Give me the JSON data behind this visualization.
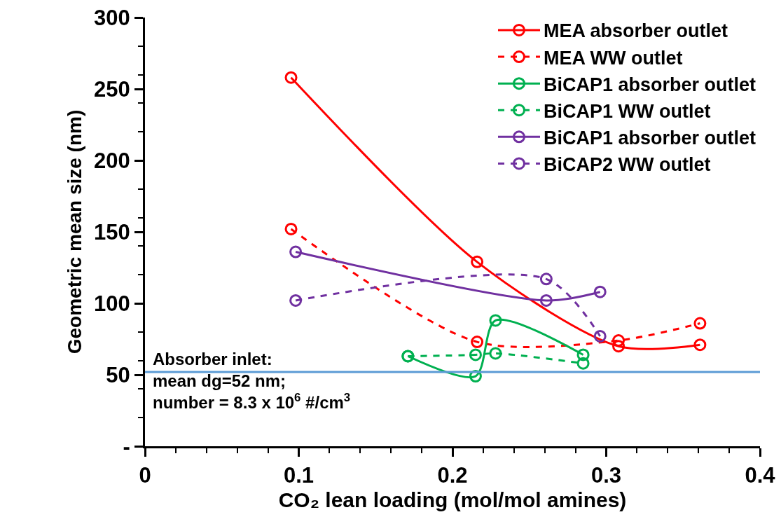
{
  "chart_data": {
    "type": "line",
    "xlabel": "CO₂ lean loading (mol/mol amines)",
    "ylabel": "Geometric mean size (nm)",
    "xlim": [
      0,
      0.4
    ],
    "xticks": [
      0,
      0.1,
      0.2,
      0.3,
      0.4
    ],
    "ylim": [
      0,
      300
    ],
    "yticks": [
      {
        "value": 0,
        "label": "-"
      },
      50,
      100,
      150,
      200,
      250,
      300
    ],
    "marker": "circle",
    "grid": false,
    "legend": "top right",
    "series": [
      {
        "name": "MEA absorber outlet",
        "color": "#ff0000",
        "line_style": "solid",
        "x": [
          0.095,
          0.216,
          0.308,
          0.361
        ],
        "values": [
          258,
          129,
          70,
          71
        ]
      },
      {
        "name": "MEA WW outlet",
        "color": "#ff0000",
        "line_style": "dashed",
        "x": [
          0.095,
          0.216,
          0.308,
          0.361
        ],
        "values": [
          152,
          73,
          74,
          86
        ]
      },
      {
        "name": "BiCAP1 absorber outlet",
        "color": "#00b050",
        "line_style": "solid",
        "x": [
          0.171,
          0.215,
          0.228,
          0.285
        ],
        "values": [
          63,
          49,
          88,
          64
        ]
      },
      {
        "name": "BiCAP1 WW outlet",
        "color": "#00b050",
        "line_style": "dashed",
        "x": [
          0.171,
          0.215,
          0.228,
          0.285
        ],
        "values": [
          63,
          64,
          65,
          58
        ]
      },
      {
        "name": "BiCAP1 absorber outlet",
        "color": "#7030a0",
        "line_style": "solid",
        "x": [
          0.098,
          0.261,
          0.296
        ],
        "values": [
          136,
          102,
          108
        ]
      },
      {
        "name": "BiCAP2 WW outlet",
        "color": "#7030a0",
        "line_style": "dashed",
        "x": [
          0.098,
          0.261,
          0.296
        ],
        "values": [
          102,
          117,
          77
        ]
      }
    ],
    "ref_lines": [
      {
        "axis": "y",
        "value": 52,
        "color": "#5b9bd5",
        "label": "Absorber inlet:\nmean dg=52 nm;\nnumber = 8.3 x 10$^{6}$ #/cm$^{3}$"
      }
    ]
  }
}
